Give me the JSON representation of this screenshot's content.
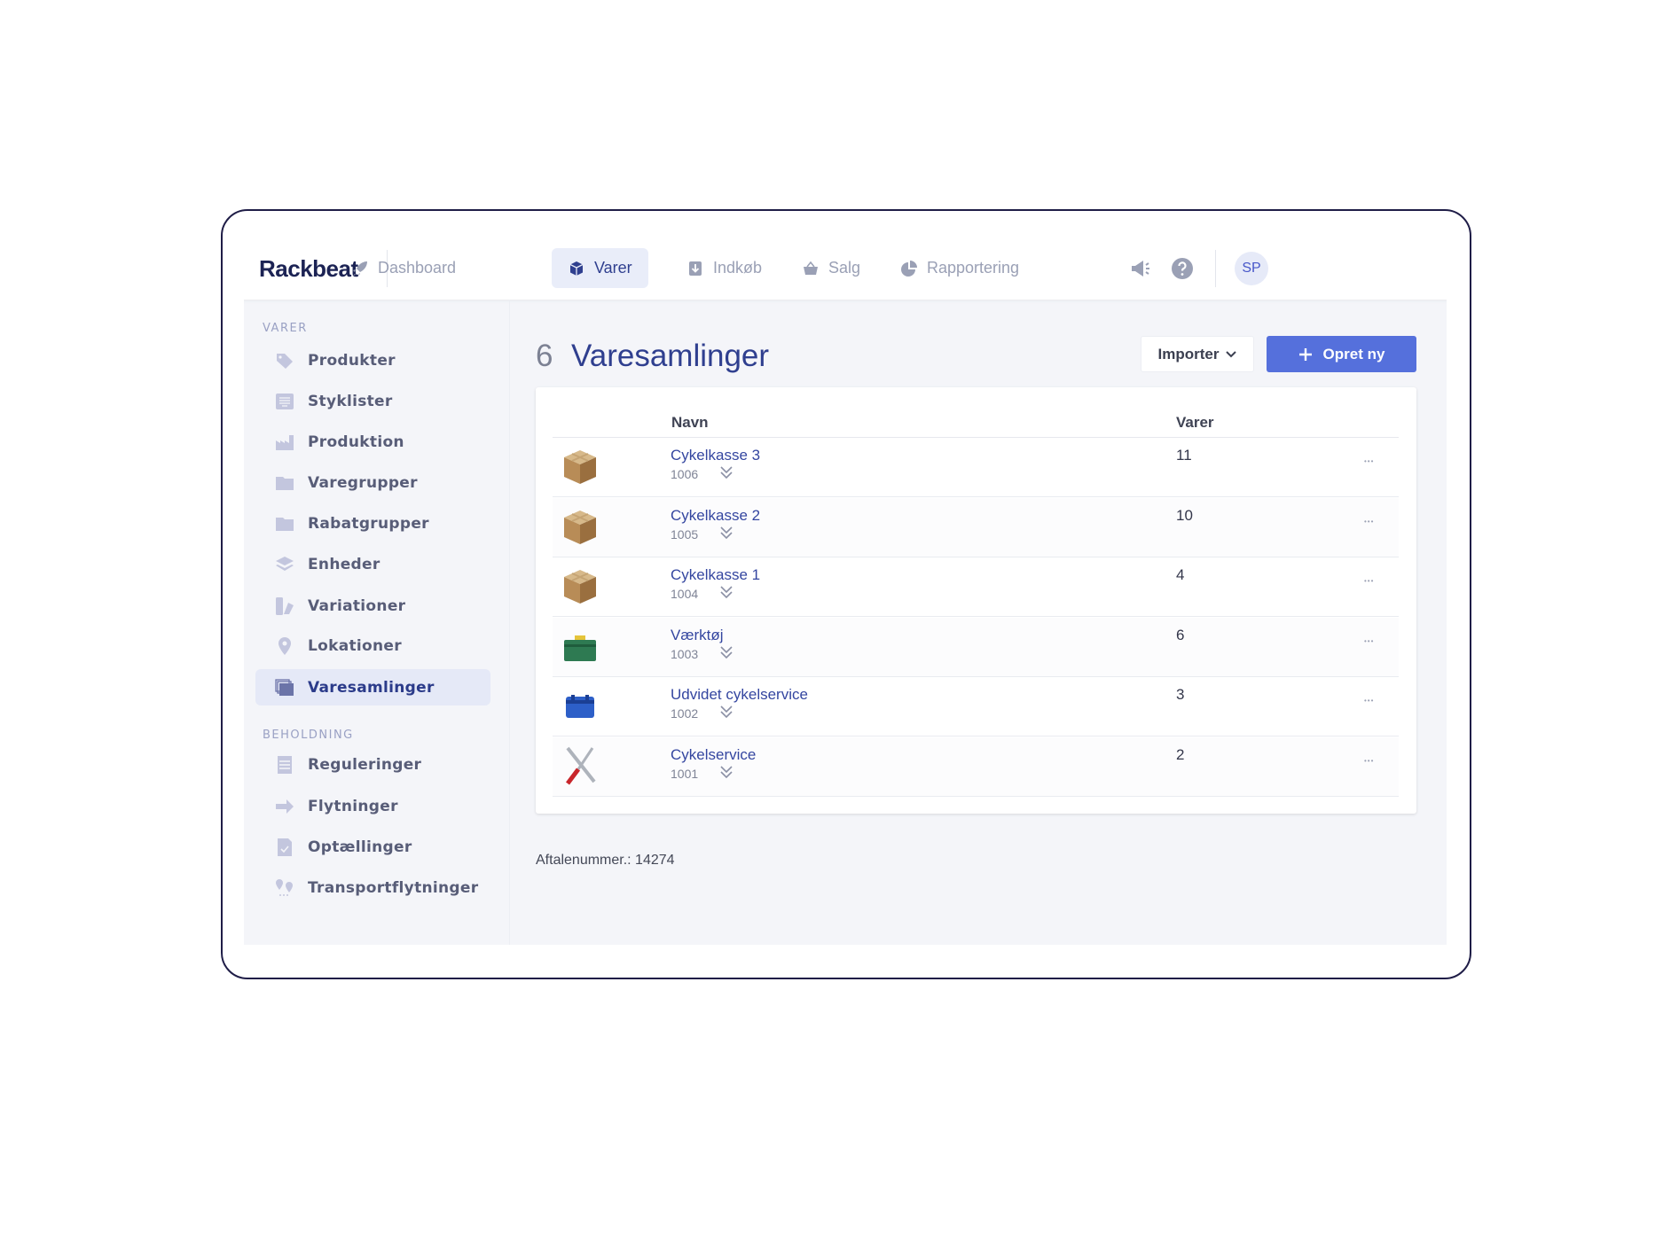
{
  "app": {
    "logo": "Rackbeat",
    "avatar": "SP"
  },
  "nav": [
    {
      "label": "Dashboard",
      "icon": "rocket-icon"
    },
    {
      "label": "Varer",
      "icon": "box-icon",
      "active": true
    },
    {
      "label": "Indkøb",
      "icon": "download-icon"
    },
    {
      "label": "Salg",
      "icon": "basket-icon"
    },
    {
      "label": "Rapportering",
      "icon": "pie-chart-icon"
    }
  ],
  "sidebar": {
    "sections": [
      {
        "title": "VARER",
        "items": [
          {
            "label": "Produkter"
          },
          {
            "label": "Styklister"
          },
          {
            "label": "Produktion"
          },
          {
            "label": "Varegrupper"
          },
          {
            "label": "Rabatgrupper"
          },
          {
            "label": "Enheder"
          },
          {
            "label": "Variationer"
          },
          {
            "label": "Lokationer"
          },
          {
            "label": "Varesamlinger",
            "active": true
          }
        ]
      },
      {
        "title": "BEHOLDNING",
        "items": [
          {
            "label": "Reguleringer"
          },
          {
            "label": "Flytninger"
          },
          {
            "label": "Optællinger"
          },
          {
            "label": "Transportflytninger"
          }
        ]
      }
    ]
  },
  "main": {
    "count": "6",
    "title": "Varesamlinger",
    "import_label": "Importer",
    "create_label": "Opret ny",
    "columns": {
      "name": "Navn",
      "items": "Varer"
    },
    "rows": [
      {
        "name": "Cykelkasse 3",
        "code": "1006",
        "qty": "11",
        "image": "cardboard-box"
      },
      {
        "name": "Cykelkasse 2",
        "code": "1005",
        "qty": "10",
        "image": "cardboard-box"
      },
      {
        "name": "Cykelkasse 1",
        "code": "1004",
        "qty": "4",
        "image": "cardboard-box"
      },
      {
        "name": "Værktøj",
        "code": "1003",
        "qty": "6",
        "image": "green-toolbox"
      },
      {
        "name": "Udvidet cykelservice",
        "code": "1002",
        "qty": "3",
        "image": "blue-toolbox"
      },
      {
        "name": "Cykelservice",
        "code": "1001",
        "qty": "2",
        "image": "wrench-screwdriver"
      }
    ],
    "footer": "Aftalenummer.: 14274"
  },
  "colors": {
    "accent": "#5570dc",
    "primary_text": "#2f3f8f",
    "frame": "#1f1d47"
  }
}
